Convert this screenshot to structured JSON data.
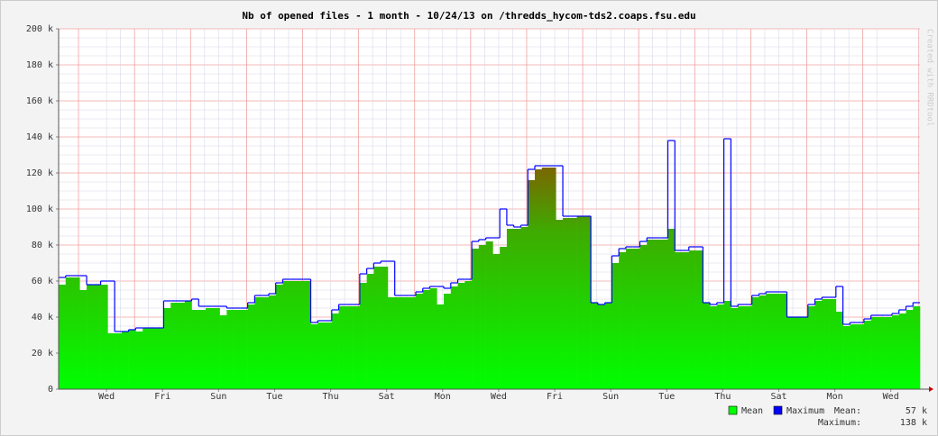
{
  "chart_data": {
    "type": "step-area",
    "title": "Nb of opened files - 1 month - 10/24/13 on /thredds_hycom-tds2.coaps.fsu.edu",
    "watermark": "Created with RRDtool",
    "xlim": [
      0,
      30.75
    ],
    "xticks": [
      {
        "value": 1.71,
        "label": "Wed"
      },
      {
        "value": 3.71,
        "label": "Fri"
      },
      {
        "value": 5.71,
        "label": "Sun"
      },
      {
        "value": 7.71,
        "label": "Tue"
      },
      {
        "value": 9.71,
        "label": "Thu"
      },
      {
        "value": 11.71,
        "label": "Sat"
      },
      {
        "value": 13.71,
        "label": "Mon"
      },
      {
        "value": 15.71,
        "label": "Wed"
      },
      {
        "value": 17.71,
        "label": "Fri"
      },
      {
        "value": 19.71,
        "label": "Sun"
      },
      {
        "value": 21.71,
        "label": "Tue"
      },
      {
        "value": 23.71,
        "label": "Thu"
      },
      {
        "value": 25.71,
        "label": "Sat"
      },
      {
        "value": 27.71,
        "label": "Mon"
      },
      {
        "value": 29.71,
        "label": "Wed"
      }
    ],
    "ylim": [
      0,
      200
    ],
    "yticks": [
      0,
      {
        "value": 20,
        "label": "20 k"
      },
      {
        "value": 40,
        "label": "40 k"
      },
      {
        "value": 60,
        "label": "60 k"
      },
      {
        "value": 80,
        "label": "80 k"
      },
      {
        "value": 100,
        "label": "100 k"
      },
      {
        "value": 120,
        "label": "120 k"
      },
      {
        "value": 140,
        "label": "140 k"
      },
      {
        "value": 160,
        "label": "160 k"
      },
      {
        "value": 180,
        "label": "180 k"
      },
      {
        "value": 200,
        "label": "200 k"
      }
    ],
    "grid": true,
    "x": [
      0,
      0.25,
      0.5,
      0.75,
      1,
      1.25,
      1.5,
      1.75,
      2,
      2.25,
      2.5,
      2.75,
      3,
      3.25,
      3.5,
      3.75,
      4,
      4.25,
      4.5,
      4.75,
      5,
      5.25,
      5.5,
      5.75,
      6,
      6.25,
      6.5,
      6.75,
      7,
      7.25,
      7.5,
      7.75,
      8,
      8.25,
      8.5,
      8.75,
      9,
      9.25,
      9.5,
      9.75,
      10,
      10.25,
      10.5,
      10.75,
      11,
      11.25,
      11.5,
      11.75,
      12,
      12.25,
      12.5,
      12.75,
      13,
      13.25,
      13.5,
      13.75,
      14,
      14.25,
      14.5,
      14.75,
      15,
      15.25,
      15.5,
      15.75,
      16,
      16.25,
      16.5,
      16.75,
      17,
      17.25,
      17.5,
      17.75,
      18,
      18.25,
      18.5,
      18.75,
      19,
      19.25,
      19.5,
      19.75,
      20,
      20.25,
      20.5,
      20.75,
      21,
      21.25,
      21.5,
      21.75,
      22,
      22.25,
      22.5,
      22.75,
      23,
      23.25,
      23.5,
      23.75,
      24,
      24.25,
      24.5,
      24.75,
      25,
      25.25,
      25.5,
      25.75,
      26,
      26.25,
      26.5,
      26.75,
      27,
      27.25,
      27.5,
      27.75,
      28,
      28.25,
      28.5,
      28.75,
      29,
      29.25,
      29.5,
      29.75,
      30,
      30.25,
      30.5
    ],
    "series": [
      {
        "name": "Mean",
        "color": "#00ff00",
        "values": [
          58,
          62,
          62,
          55,
          58,
          58,
          58,
          31,
          31,
          32,
          33,
          32,
          34,
          34,
          34,
          45,
          48,
          48,
          49,
          44,
          44,
          45,
          45,
          41,
          44,
          44,
          44,
          47,
          51,
          51,
          52,
          58,
          60,
          60,
          60,
          60,
          36,
          37,
          37,
          42,
          46,
          46,
          46,
          59,
          64,
          68,
          68,
          51,
          51,
          51,
          51,
          53,
          55,
          56,
          47,
          53,
          57,
          59,
          60,
          78,
          80,
          82,
          75,
          79,
          89,
          89,
          90,
          116,
          122,
          123,
          123,
          94,
          95,
          95,
          96,
          96,
          48,
          47,
          48,
          70,
          76,
          78,
          78,
          80,
          83,
          83,
          83,
          89,
          76,
          76,
          77,
          77,
          48,
          46,
          47,
          49,
          45,
          46,
          46,
          51,
          52,
          53,
          53,
          53,
          40,
          40,
          40,
          46,
          49,
          50,
          50,
          43,
          35,
          36,
          36,
          38,
          40,
          40,
          40,
          41,
          42,
          44,
          46
        ]
      },
      {
        "name": "Maximum",
        "color": "#0000ff",
        "values": [
          62,
          63,
          63,
          63,
          58,
          58,
          60,
          60,
          32,
          32,
          33,
          34,
          34,
          34,
          34,
          49,
          49,
          49,
          49,
          50,
          46,
          46,
          46,
          46,
          45,
          45,
          45,
          48,
          52,
          52,
          53,
          59,
          61,
          61,
          61,
          61,
          37,
          38,
          38,
          44,
          47,
          47,
          47,
          64,
          67,
          70,
          71,
          71,
          52,
          52,
          52,
          54,
          56,
          57,
          57,
          56,
          59,
          61,
          61,
          82,
          83,
          84,
          84,
          100,
          91,
          90,
          91,
          122,
          124,
          124,
          124,
          124,
          96,
          96,
          96,
          96,
          48,
          47,
          48,
          74,
          78,
          79,
          79,
          82,
          84,
          84,
          84,
          138,
          77,
          77,
          79,
          79,
          48,
          47,
          48,
          139,
          46,
          47,
          47,
          52,
          53,
          54,
          54,
          54,
          40,
          40,
          40,
          47,
          50,
          51,
          51,
          57,
          36,
          37,
          37,
          39,
          41,
          41,
          41,
          42,
          44,
          46,
          48
        ]
      }
    ],
    "summary": [
      {
        "label": "Mean:",
        "value": 57,
        "value_label": "57 k"
      },
      {
        "label": "Maximum:",
        "value": 138,
        "value_label": "138 k"
      }
    ]
  }
}
